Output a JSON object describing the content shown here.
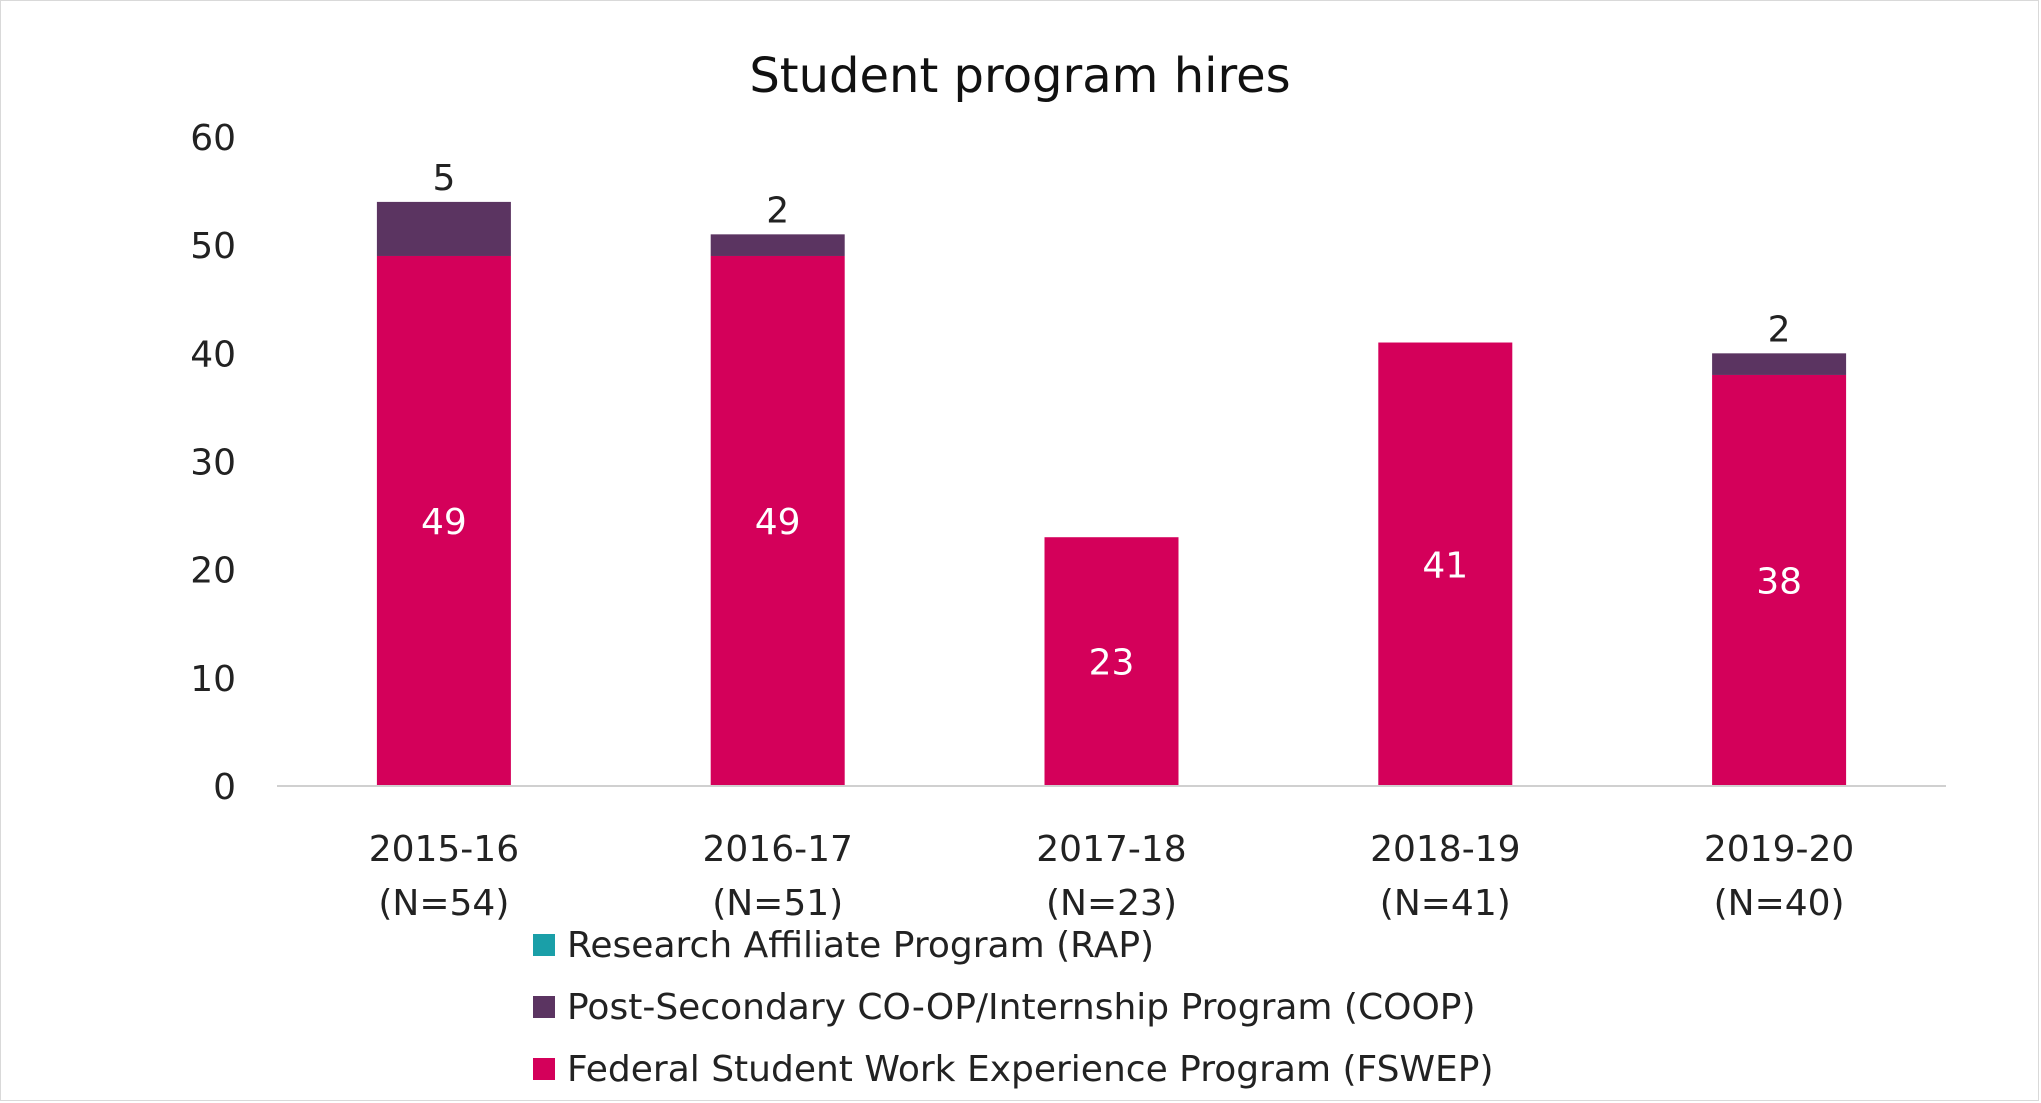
{
  "chart_data": {
    "type": "bar",
    "stacked": true,
    "title": "Student program hires",
    "categories": [
      "2015-16",
      "2016-17",
      "2017-18",
      "2018-19",
      "2019-20"
    ],
    "category_sublabels": [
      "(N=54)",
      "(N=51)",
      "(N=23)",
      "(N=41)",
      "(N=40)"
    ],
    "ylim": [
      0,
      60
    ],
    "yticks": [
      "0",
      "10",
      "20",
      "30",
      "40",
      "50",
      "60"
    ],
    "grid": false,
    "legend_position": "bottom",
    "series": [
      {
        "name": "Federal Student Work Experience Program (FSWEP)",
        "color": "#d4005a",
        "values": [
          49,
          49,
          23,
          41,
          38
        ],
        "labels": [
          "49",
          "49",
          "23",
          "41",
          "38"
        ]
      },
      {
        "name": "Post-Secondary CO-OP/Internship Program (COOP)",
        "color": "#5b3461",
        "values": [
          5,
          2,
          0,
          0,
          2
        ],
        "labels": [
          "5",
          "2",
          "",
          "",
          "2"
        ]
      },
      {
        "name": "Research Affiliate Program (RAP)",
        "color": "#1a9fa8",
        "values": [
          0,
          0,
          0,
          0,
          0
        ],
        "labels": [
          "",
          "",
          "",
          "",
          ""
        ]
      }
    ],
    "legend_order": [
      2,
      1,
      0
    ]
  }
}
